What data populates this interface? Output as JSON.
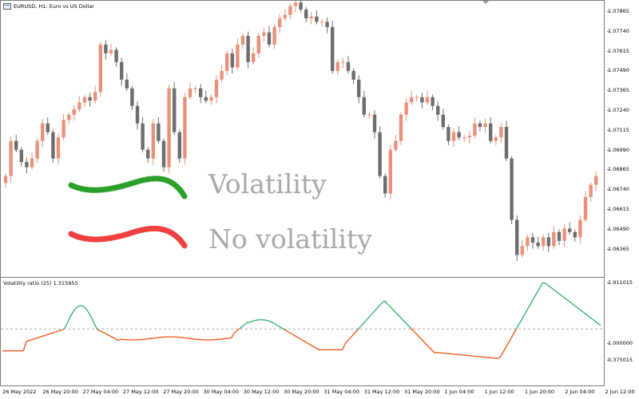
{
  "main_chart": {
    "symbol_header": "EURUSD, H1:  Euro vs US Dollar",
    "price_ticks": [
      "1.07865",
      "1.07740",
      "1.07615",
      "1.07490",
      "1.07365",
      "1.07240",
      "1.07115",
      "1.06990",
      "1.06865",
      "1.06740",
      "1.06615",
      "1.06490",
      "1.06365"
    ],
    "legend": {
      "volatility_label": "Volatility",
      "no_volatility_label": "No volatility",
      "volatility_color": "#2aa02a",
      "no_volatility_color": "#ee4040"
    },
    "bull_color": "#e8927c",
    "bear_color": "#6d6d6d"
  },
  "indicator": {
    "header": "Volatility ratio (25) 1.315955",
    "ticks": [
      "1.911015",
      "1.000000",
      "0.375015"
    ],
    "line_high_color": "#3cb371",
    "line_low_color": "#f05a1a",
    "level_line_color": "#aaaaaa"
  },
  "time_axis": [
    "26 May 2022",
    "26 May 20:00",
    "27 May 04:00",
    "27 May 12:00",
    "27 May 20:00",
    "30 May 04:00",
    "30 May 12:00",
    "30 May 20:00",
    "31 May 04:00",
    "31 May 12:00",
    "31 May 20:00",
    "1 Jun 04:00",
    "1 Jun 12:00",
    "1 Jun 20:00",
    "2 Jun 04:00",
    "2 Jun 12:00"
  ],
  "chart_data": {
    "type": "candlestick",
    "symbol": "EURUSD",
    "timeframe": "H1",
    "ylim": [
      1.06315,
      1.079
    ],
    "closes": [
      1.069,
      1.071,
      1.0705,
      1.0698,
      1.0695,
      1.07,
      1.071,
      1.072,
      1.0715,
      1.07,
      1.0712,
      1.0722,
      1.0725,
      1.0728,
      1.0732,
      1.0735,
      1.0733,
      1.0738,
      1.0765,
      1.076,
      1.0762,
      1.0755,
      1.0745,
      1.074,
      1.073,
      1.072,
      1.0705,
      1.07,
      1.072,
      1.071,
      1.0695,
      1.074,
      1.0715,
      1.07,
      1.0735,
      1.074,
      1.074,
      1.0735,
      1.0733,
      1.0735,
      1.0745,
      1.075,
      1.076,
      1.0752,
      1.0765,
      1.077,
      1.0755,
      1.076,
      1.077,
      1.0772,
      1.0765,
      1.0775,
      1.078,
      1.0782,
      1.0787,
      1.0789,
      1.0785,
      1.078,
      1.0781,
      1.0778,
      1.0778,
      1.0775,
      1.075,
      1.0755,
      1.0755,
      1.075,
      1.0745,
      1.0735,
      1.0725,
      1.0725,
      1.0715,
      1.069,
      1.068,
      1.0705,
      1.071,
      1.0725,
      1.0732,
      1.0735,
      1.0735,
      1.0732,
      1.0735,
      1.073,
      1.0725,
      1.0718,
      1.071,
      1.0715,
      1.0712,
      1.0712,
      1.0713,
      1.072,
      1.0718,
      1.072,
      1.071,
      1.0712,
      1.0718,
      1.07,
      1.0665,
      1.0645,
      1.065,
      1.0655,
      1.0652,
      1.065,
      1.0655,
      1.065,
      1.0658,
      1.0653,
      1.066,
      1.0658,
      1.0655,
      1.0665,
      1.0678,
      1.0685,
      1.069
    ]
  }
}
